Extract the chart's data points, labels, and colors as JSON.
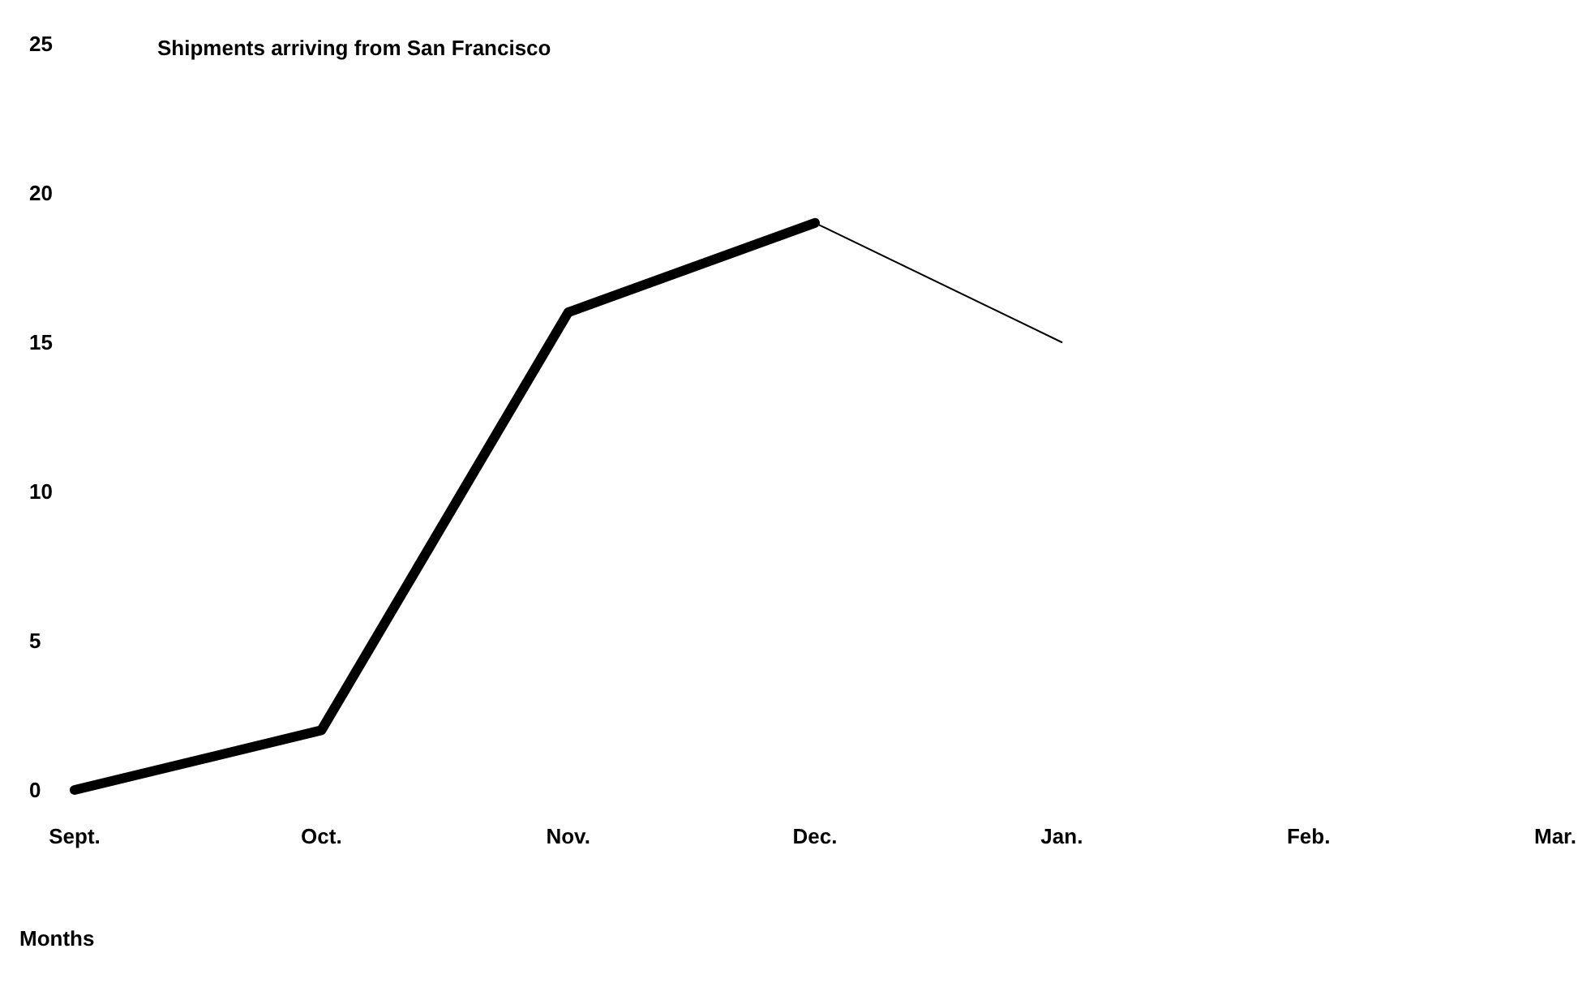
{
  "chart_data": {
    "type": "line",
    "title": "Shipments arriving from San Francisco",
    "xlabel": "Months",
    "categories": [
      "Sept.",
      "Oct.",
      "Nov.",
      "Dec.",
      "Jan.",
      "Feb.",
      "Mar."
    ],
    "series": [
      {
        "color": "#000000",
        "values": [
          0,
          2,
          16,
          19,
          null,
          null,
          null
        ]
      },
      {
        "color": "#000000",
        "values": [
          null,
          null,
          null,
          19,
          15,
          null,
          null
        ]
      }
    ],
    "ylim": [
      0,
      25
    ],
    "yticks": [
      0,
      5,
      10,
      15,
      20,
      25
    ],
    "marker": "none",
    "line_style": "solid"
  }
}
